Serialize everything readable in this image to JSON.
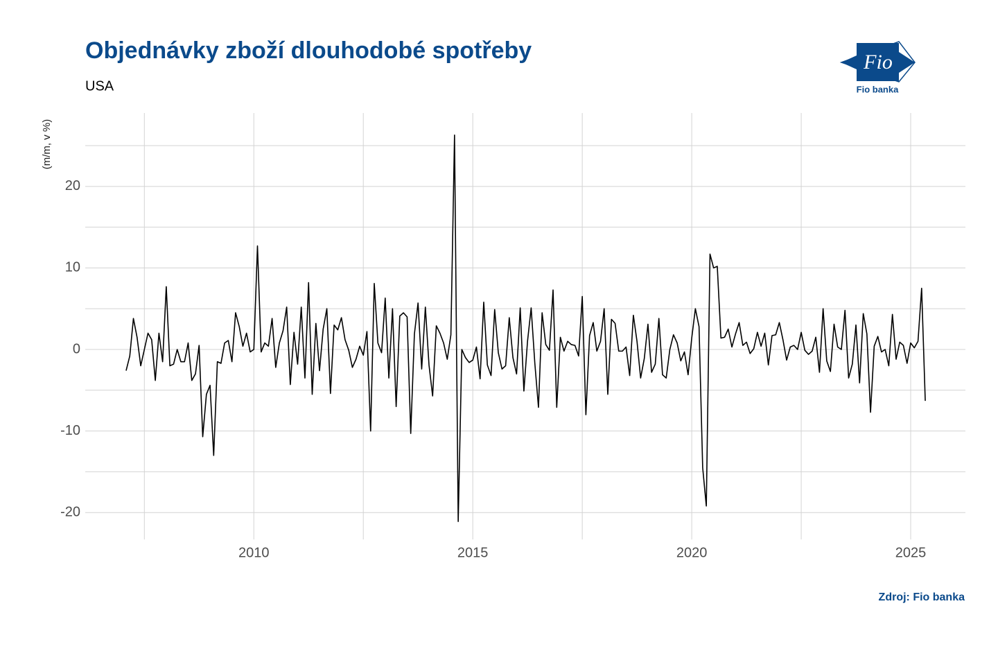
{
  "logo": {
    "mark": "Fio",
    "name": "Fio banka"
  },
  "chart_data": {
    "type": "line",
    "title": "Objednávky zboží dlouhodobé spotřeby",
    "subtitle": "USA",
    "y_label": "(m/m, v %)",
    "source": "Zdroj: Fio banka",
    "color": "#000000",
    "grid": true,
    "xlim": [
      2006.15,
      2026.25
    ],
    "ylim": [
      -23.3,
      29
    ],
    "xticks": [
      2010,
      2015,
      2020,
      2025
    ],
    "yticks": [
      -20,
      -10,
      0,
      10,
      20
    ],
    "xminor": [
      2007.5,
      2012.5,
      2017.5,
      2022.5
    ],
    "yminor": [
      -15,
      -5,
      5,
      15,
      25
    ],
    "x": [
      2007.083,
      2007.167,
      2007.25,
      2007.333,
      2007.417,
      2007.5,
      2007.583,
      2007.667,
      2007.75,
      2007.833,
      2007.917,
      2008,
      2008.083,
      2008.167,
      2008.25,
      2008.333,
      2008.417,
      2008.5,
      2008.583,
      2008.667,
      2008.75,
      2008.833,
      2008.917,
      2009,
      2009.083,
      2009.167,
      2009.25,
      2009.333,
      2009.417,
      2009.5,
      2009.583,
      2009.667,
      2009.75,
      2009.833,
      2009.917,
      2010,
      2010.083,
      2010.167,
      2010.25,
      2010.333,
      2010.417,
      2010.5,
      2010.583,
      2010.667,
      2010.75,
      2010.833,
      2010.917,
      2011,
      2011.083,
      2011.167,
      2011.25,
      2011.333,
      2011.417,
      2011.5,
      2011.583,
      2011.667,
      2011.75,
      2011.833,
      2011.917,
      2012,
      2012.083,
      2012.167,
      2012.25,
      2012.333,
      2012.417,
      2012.5,
      2012.583,
      2012.667,
      2012.75,
      2012.833,
      2012.917,
      2013,
      2013.083,
      2013.167,
      2013.25,
      2013.333,
      2013.417,
      2013.5,
      2013.583,
      2013.667,
      2013.75,
      2013.833,
      2013.917,
      2014,
      2014.083,
      2014.167,
      2014.25,
      2014.333,
      2014.417,
      2014.5,
      2014.583,
      2014.667,
      2014.75,
      2014.833,
      2014.917,
      2015,
      2015.083,
      2015.167,
      2015.25,
      2015.333,
      2015.417,
      2015.5,
      2015.583,
      2015.667,
      2015.75,
      2015.833,
      2015.917,
      2016,
      2016.083,
      2016.167,
      2016.25,
      2016.333,
      2016.417,
      2016.5,
      2016.583,
      2016.667,
      2016.75,
      2016.833,
      2016.917,
      2017,
      2017.083,
      2017.167,
      2017.25,
      2017.333,
      2017.417,
      2017.5,
      2017.583,
      2017.667,
      2017.75,
      2017.833,
      2017.917,
      2018,
      2018.083,
      2018.167,
      2018.25,
      2018.333,
      2018.417,
      2018.5,
      2018.583,
      2018.667,
      2018.75,
      2018.833,
      2018.917,
      2019,
      2019.083,
      2019.167,
      2019.25,
      2019.333,
      2019.417,
      2019.5,
      2019.583,
      2019.667,
      2019.75,
      2019.833,
      2019.917,
      2020,
      2020.083,
      2020.167,
      2020.25,
      2020.333,
      2020.417,
      2020.5,
      2020.583,
      2020.667,
      2020.75,
      2020.833,
      2020.917,
      2021,
      2021.083,
      2021.167,
      2021.25,
      2021.333,
      2021.417,
      2021.5,
      2021.583,
      2021.667,
      2021.75,
      2021.833,
      2021.917,
      2022,
      2022.083,
      2022.167,
      2022.25,
      2022.333,
      2022.417,
      2022.5,
      2022.583,
      2022.667,
      2022.75,
      2022.833,
      2022.917,
      2023,
      2023.083,
      2023.167,
      2023.25,
      2023.333,
      2023.417,
      2023.5,
      2023.583,
      2023.667,
      2023.75,
      2023.833,
      2023.917,
      2024,
      2024.083,
      2024.167,
      2024.25,
      2024.333,
      2024.417,
      2024.5,
      2024.583,
      2024.667,
      2024.75,
      2024.833,
      2024.917,
      2025,
      2025.083,
      2025.167,
      2025.25,
      2025.333
    ],
    "values": [
      -2.6,
      -0.8,
      3.8,
      1.5,
      -2.0,
      0,
      2.0,
      1.2,
      -3.8,
      2.0,
      -1.5,
      7.7,
      -2.0,
      -1.8,
      0,
      -1.5,
      -1.5,
      0.8,
      -3.8,
      -3.0,
      0.5,
      -10.7,
      -5.5,
      -4.4,
      -13.0,
      -1.5,
      -1.7,
      0.8,
      1.1,
      -1.5,
      4.5,
      2.8,
      0.4,
      2.0,
      -0.3,
      0,
      12.7,
      -0.3,
      0.8,
      0.4,
      3.8,
      -2.2,
      0.8,
      2.3,
      5.2,
      -4.3,
      2.1,
      -1.8,
      5.2,
      -3.5,
      8.2,
      -5.5,
      3.2,
      -2.6,
      2.5,
      5.0,
      -5.4,
      3.0,
      2.4,
      3.9,
      1.2,
      -0.1,
      -2.2,
      -1.2,
      0.4,
      -0.7,
      2.2,
      -10.0,
      8.1,
      0.8,
      -0.4,
      6.3,
      -3.5,
      5.0,
      -7.0,
      4.1,
      4.5,
      4.0,
      -10.3,
      1.9,
      5.7,
      -2.4,
      5.2,
      -1.9,
      -5.7,
      2.9,
      2.0,
      0.8,
      -1.2,
      1.8,
      26.3,
      -21.1,
      0,
      -1.0,
      -1.6,
      -1.3,
      0.3,
      -3.6,
      5.8,
      -1.9,
      -3.2,
      4.9,
      -0.4,
      -2.4,
      -2.0,
      3.9,
      -1.0,
      -3.0,
      5.1,
      -5.1,
      1.0,
      5.1,
      -1.7,
      -7.1,
      4.5,
      0.6,
      -0.1,
      7.3,
      -7.1,
      1.5,
      -0.2,
      1.0,
      0.6,
      0.5,
      -0.8,
      6.5,
      -8.0,
      1.7,
      3.3,
      -0.2,
      1.0,
      5.0,
      -5.5,
      3.7,
      3.2,
      -0.2,
      -0.2,
      0.3,
      -3.2,
      4.2,
      1.0,
      -3.5,
      -1.1,
      3.1,
      -2.8,
      -1.8,
      3.8,
      -3.1,
      -3.5,
      0.0,
      1.8,
      0.8,
      -1.4,
      -0.3,
      -3.1,
      1.4,
      5.0,
      2.8,
      -14.5,
      -19.2,
      11.7,
      10.0,
      10.2,
      1.4,
      1.5,
      2.5,
      0.3,
      1.9,
      3.3,
      0.5,
      0.9,
      -0.5,
      0.1,
      2.1,
      0.4,
      2.0,
      -1.9,
      1.7,
      1.8,
      3.3,
      1.2,
      -1.3,
      0.3,
      0.5,
      0,
      2.1,
      -0.1,
      -0.6,
      -0.2,
      1.5,
      -2.8,
      5.0,
      -1.4,
      -2.7,
      3.1,
      0.3,
      0,
      4.8,
      -3.5,
      -1.8,
      3.0,
      -4.1,
      4.4,
      1.9,
      -7.7,
      0.4,
      1.6,
      -0.3,
      0,
      -2.0,
      4.3,
      -1.2,
      0.9,
      0.5,
      -1.7,
      0.8,
      0.2,
      1.0,
      7.5,
      -6.3
    ]
  }
}
